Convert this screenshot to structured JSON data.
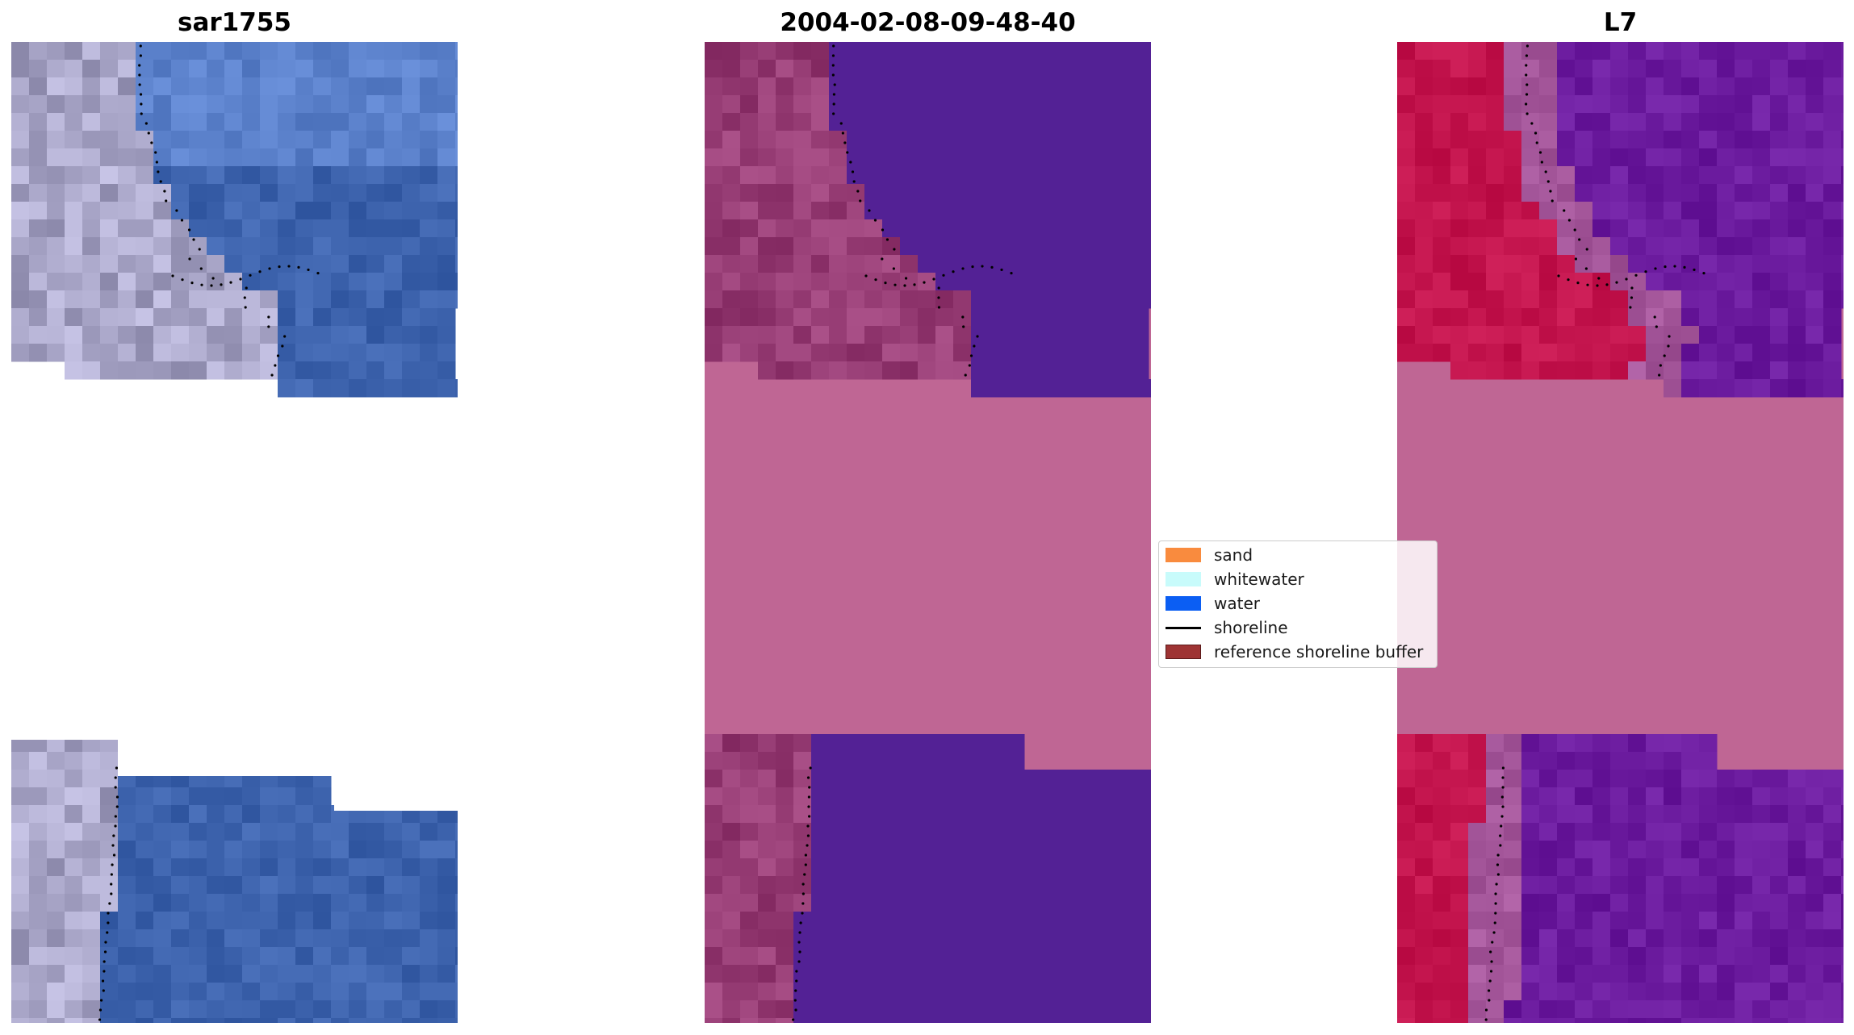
{
  "panels": [
    {
      "title": "sar1755",
      "kind": "rgb"
    },
    {
      "title": "2004-02-08-09-48-40",
      "kind": "classified"
    },
    {
      "title": "L7",
      "kind": "index"
    }
  ],
  "legend": {
    "items": [
      {
        "label": "sand",
        "color": "#f98b3e",
        "type": "patch"
      },
      {
        "label": "whitewater",
        "color": "#c8fbfb",
        "type": "patch"
      },
      {
        "label": "water",
        "color": "#0b5ef3",
        "type": "patch"
      },
      {
        "label": "shoreline",
        "color": "#000000",
        "type": "line"
      },
      {
        "label": "reference shoreline buffer",
        "color": "#9e3434",
        "type": "patch"
      }
    ]
  },
  "colors": {
    "nodata_buffer": "#bf6694",
    "rgb_land": "#a9a6c8",
    "rgb_water": "#3d63ad",
    "class_land": "#963c74",
    "class_water": "#532195",
    "index_land": "#c3144d",
    "index_water": "#6b1b9e",
    "shoreline": "#000000"
  }
}
